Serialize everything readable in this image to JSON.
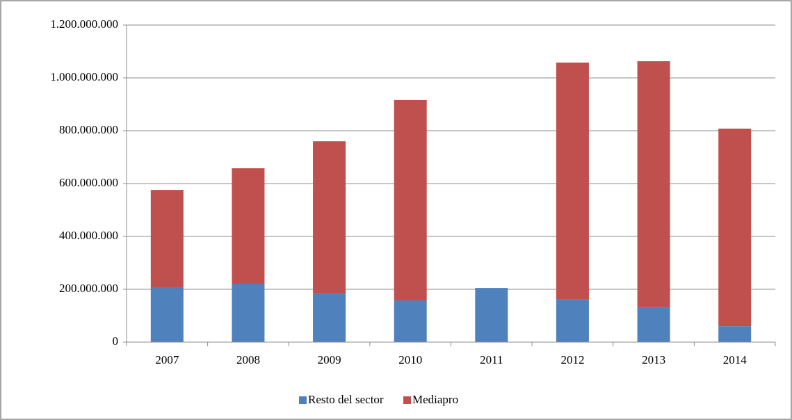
{
  "chart_data": {
    "type": "stacked_bar",
    "categories": [
      "2007",
      "2008",
      "2009",
      "2010",
      "2011",
      "2012",
      "2013",
      "2014"
    ],
    "series": [
      {
        "name": "Resto del sector",
        "color": "#4f81bd",
        "values": [
          208000000,
          221000000,
          184000000,
          158000000,
          205000000,
          163000000,
          132000000,
          60000000
        ]
      },
      {
        "name": "Mediapro",
        "color": "#c0504d",
        "values": [
          368000000,
          437000000,
          576000000,
          758000000,
          0,
          895000000,
          931000000,
          748000000
        ]
      }
    ],
    "ylim": [
      0,
      1200000000
    ],
    "yticks": [
      0,
      {
        "value": 200000000,
        "label": "200.000.000"
      },
      {
        "value": 400000000,
        "label": "400.000.000"
      },
      {
        "value": 600000000,
        "label": "600.000.000"
      },
      {
        "value": 800000000,
        "label": "800.000.000"
      },
      {
        "value": 1000000000,
        "label": "1.000.000.000"
      },
      {
        "value": 1200000000,
        "label": "1.200.000.000"
      }
    ],
    "grid": true,
    "legend": "bottom"
  }
}
